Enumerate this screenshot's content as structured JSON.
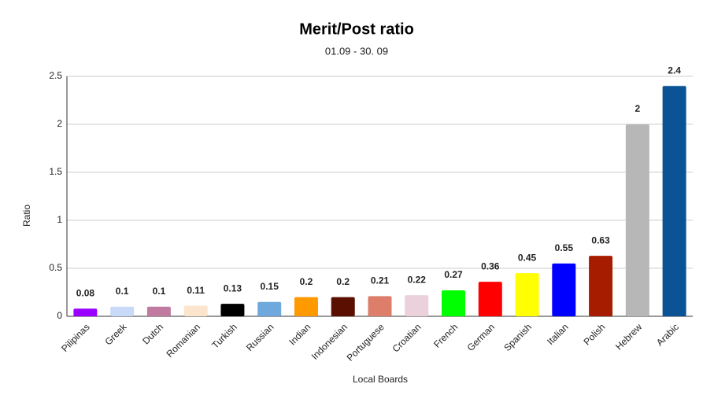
{
  "chart_data": {
    "type": "bar",
    "title": "Merit/Post ratio",
    "subtitle": "01.09 - 30. 09",
    "x_label": "Local Boards",
    "y_label": "Ratio",
    "categories": [
      "Pilipinas",
      "Greek",
      "Dutch",
      "Romanian",
      "Turkish",
      "Russian",
      "Indian",
      "Indonesian",
      "Portuguese",
      "Croatian",
      "French",
      "German",
      "Spanish",
      "Italian",
      "Polish",
      "Hebrew",
      "Arabic"
    ],
    "values": [
      0.08,
      0.1,
      0.1,
      0.11,
      0.13,
      0.15,
      0.2,
      0.2,
      0.21,
      0.22,
      0.27,
      0.36,
      0.45,
      0.55,
      0.63,
      2,
      2.4
    ],
    "colors": [
      "#9900ff",
      "#c9daf8",
      "#c27ba0",
      "#fce5cd",
      "#000000",
      "#6fa8dc",
      "#ff9900",
      "#5b0f00",
      "#dd7e6b",
      "#ead1dc",
      "#00ff00",
      "#ff0000",
      "#ffff00",
      "#0000ff",
      "#a61c00",
      "#b7b7b7",
      "#0b5394"
    ],
    "ylim": [
      0,
      2.5
    ],
    "yticks": [
      0,
      0.5,
      1,
      1.5,
      2,
      2.5
    ],
    "grid": true
  }
}
